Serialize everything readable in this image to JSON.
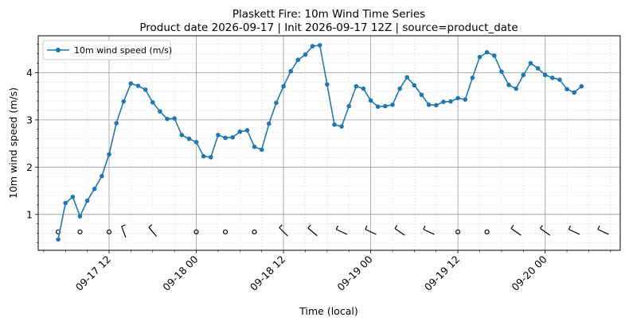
{
  "chart_data": {
    "type": "line",
    "title": "Plaskett Fire: 10m Wind Time Series",
    "subtitle": "Product date 2026-09-17 | Init 2026-09-17 12Z | source=product_date",
    "xlabel": "Time (local)",
    "ylabel": "10m wind speed (m/s)",
    "x_start": "2026-09-17 05:00",
    "x_step_hours": 1,
    "xlim": [
      "2026-09-17 02:15",
      "2026-09-20 10:20"
    ],
    "ylim": [
      0.24,
      4.78
    ],
    "x_ticks": [
      {
        "time": "2026-09-17 12:00",
        "label": "09-17 12"
      },
      {
        "time": "2026-09-18 00:00",
        "label": "09-18 00"
      },
      {
        "time": "2026-09-18 12:00",
        "label": "09-18 12"
      },
      {
        "time": "2026-09-19 00:00",
        "label": "09-19 00"
      },
      {
        "time": "2026-09-19 12:00",
        "label": "09-19 12"
      },
      {
        "time": "2026-09-20 00:00",
        "label": "09-20 00"
      }
    ],
    "y_ticks": [
      {
        "value": 1,
        "label": "1"
      },
      {
        "value": 2,
        "label": "2"
      },
      {
        "value": 3,
        "label": "3"
      },
      {
        "value": 4,
        "label": "4"
      }
    ],
    "grid": true,
    "legend": "top-left",
    "series": [
      {
        "name": "10m wind speed (m/s)",
        "color": "#1f77b4",
        "values": [
          0.47,
          1.24,
          1.37,
          0.96,
          1.29,
          1.54,
          1.81,
          2.27,
          2.93,
          3.39,
          3.77,
          3.72,
          3.64,
          3.37,
          3.18,
          3.02,
          3.03,
          2.68,
          2.6,
          2.53,
          2.23,
          2.21,
          2.68,
          2.62,
          2.63,
          2.75,
          2.78,
          2.43,
          2.37,
          2.92,
          3.36,
          3.71,
          4.03,
          4.27,
          4.38,
          4.56,
          4.58,
          3.75,
          2.9,
          2.86,
          3.29,
          3.71,
          3.66,
          3.41,
          3.28,
          3.29,
          3.32,
          3.66,
          3.9,
          3.73,
          3.53,
          3.32,
          3.31,
          3.38,
          3.39,
          3.46,
          3.43,
          3.89,
          4.33,
          4.43,
          4.36,
          4.02,
          3.74,
          3.66,
          3.95,
          4.2,
          4.09,
          3.95,
          3.89,
          3.85,
          3.65,
          3.58,
          3.71
        ]
      }
    ],
    "wind_barbs": {
      "y_value": 0.63,
      "marks": [
        {
          "time": "2026-09-17 05:00",
          "kind": "calm"
        },
        {
          "time": "2026-09-17 08:00",
          "kind": "calm"
        },
        {
          "time": "2026-09-17 12:00",
          "kind": "calm"
        },
        {
          "time": "2026-09-17 14:00",
          "kind": "barb",
          "angle": 70
        },
        {
          "time": "2026-09-17 18:00",
          "kind": "barb",
          "angle": 50
        },
        {
          "time": "2026-09-18 00:00",
          "kind": "calm"
        },
        {
          "time": "2026-09-18 04:00",
          "kind": "calm"
        },
        {
          "time": "2026-09-18 08:00",
          "kind": "calm"
        },
        {
          "time": "2026-09-18 12:00",
          "kind": "barb",
          "angle": 45
        },
        {
          "time": "2026-09-18 16:00",
          "kind": "barb",
          "angle": 40
        },
        {
          "time": "2026-09-18 20:00",
          "kind": "barb",
          "angle": 25
        },
        {
          "time": "2026-09-19 00:00",
          "kind": "barb",
          "angle": 25
        },
        {
          "time": "2026-09-19 04:00",
          "kind": "barb",
          "angle": 35
        },
        {
          "time": "2026-09-19 08:00",
          "kind": "barb",
          "angle": 25
        },
        {
          "time": "2026-09-19 12:00",
          "kind": "calm"
        },
        {
          "time": "2026-09-19 16:00",
          "kind": "calm"
        },
        {
          "time": "2026-09-19 20:00",
          "kind": "barb",
          "angle": 35
        },
        {
          "time": "2026-09-20 00:00",
          "kind": "barb",
          "angle": 35
        },
        {
          "time": "2026-09-20 04:00",
          "kind": "barb",
          "angle": 25
        },
        {
          "time": "2026-09-20 08:00",
          "kind": "barb",
          "angle": 25
        }
      ]
    }
  }
}
